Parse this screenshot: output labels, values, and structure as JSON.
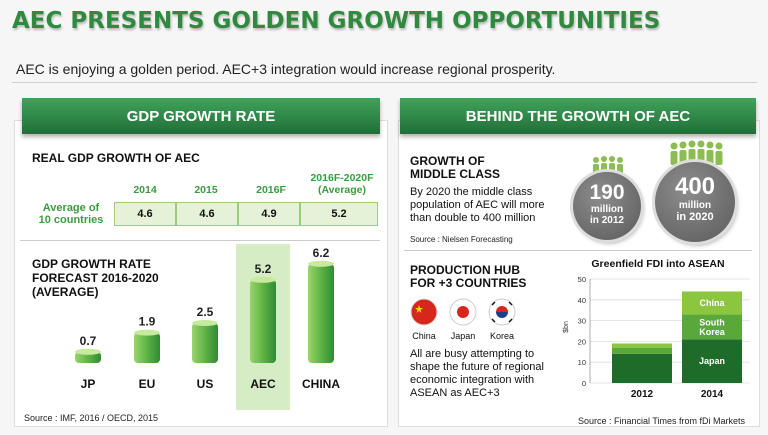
{
  "header": {
    "title": "AEC PRESENTS GOLDEN GROWTH OPPORTUNITIES",
    "subtitle": "AEC is enjoying a golden period. AEC+3 integration would increase regional prosperity."
  },
  "left_panel": {
    "heading": "GDP GROWTH RATE",
    "real_gdp": {
      "title": "REAL GDP GROWTH OF AEC",
      "columns": [
        "2014",
        "2015",
        "2016F",
        "2016F-2020F\n(Average)"
      ],
      "row_label": "Average of\n10 countries",
      "values": [
        "4.6",
        "4.6",
        "4.9",
        "5.2"
      ]
    },
    "forecast": {
      "title": "GDP GROWTH RATE\nFORECAST 2016-2020\n(AVERAGE)"
    },
    "source": "Source : IMF, 2016 /  OECD, 2015"
  },
  "right_panel": {
    "heading": "BEHIND THE GROWTH OF AEC",
    "middle_class": {
      "title": "GROWTH OF\nMIDDLE CLASS",
      "body": "By 2020 the middle class population of AEC will more than double to 400 million",
      "source": "Source : Nielsen Forecasting",
      "circle_2012": {
        "num": "190",
        "unit": "million",
        "year": "in 2012"
      },
      "circle_2020": {
        "num": "400",
        "unit": "million",
        "year": "in 2020"
      }
    },
    "production": {
      "title": "PRODUCTION HUB\nFOR +3 COUNTRIES",
      "flags": [
        {
          "name": "China",
          "icon": "china-flag-icon",
          "color": "#d7261b"
        },
        {
          "name": "Japan",
          "icon": "japan-flag-icon",
          "color": "#d7261b"
        },
        {
          "name": "Korea",
          "icon": "korea-flag-icon",
          "color": "#1f3d8a"
        }
      ],
      "body": "All are busy attempting to shape the future of regional economic integration with ASEAN as AEC+3"
    },
    "source": "Source : Financial Times from fDi Markets"
  },
  "chart_data": [
    {
      "type": "bar",
      "title": "GDP GROWTH RATE FORECAST 2016-2020 (AVERAGE)",
      "categories": [
        "JP",
        "EU",
        "US",
        "AEC",
        "CHINA"
      ],
      "values": [
        0.7,
        1.9,
        2.5,
        5.2,
        6.2
      ],
      "highlight": "AEC",
      "colors": {
        "bar": "#3a9a3e",
        "light": "#9ad46e",
        "highlight_bg": "#d5ecc4"
      }
    },
    {
      "type": "bar",
      "stacked": true,
      "title": "Greenfield FDI into ASEAN",
      "ylabel": "$bn",
      "categories": [
        "2012",
        "2014"
      ],
      "ylim": [
        0,
        50
      ],
      "yticks": [
        0,
        10,
        20,
        30,
        40,
        50
      ],
      "series": [
        {
          "name": "Japan",
          "values": [
            14,
            21
          ],
          "color": "#1f6b2a"
        },
        {
          "name": "South Korea",
          "values": [
            3,
            12
          ],
          "color": "#5aa83a"
        },
        {
          "name": "China",
          "values": [
            2,
            11
          ],
          "color": "#8cc63f"
        }
      ]
    }
  ]
}
